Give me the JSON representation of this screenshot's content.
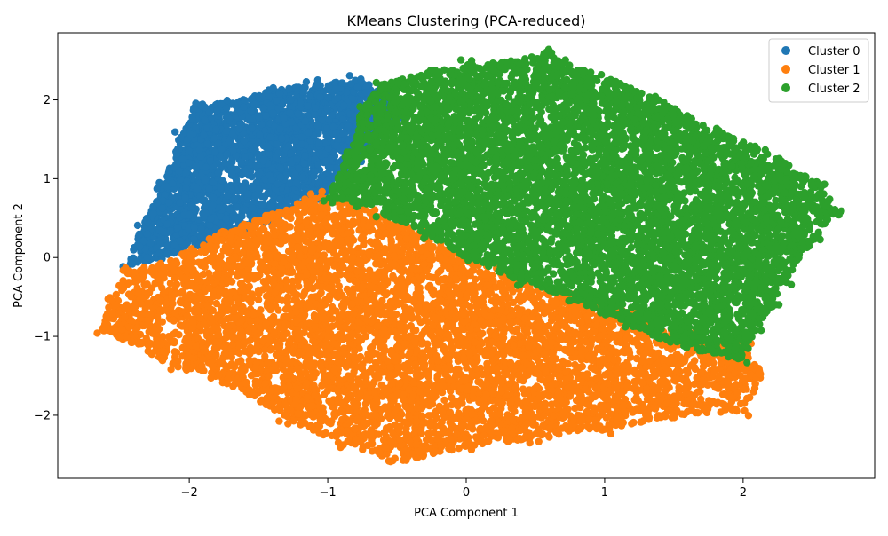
{
  "chart_data": {
    "type": "scatter",
    "title": "KMeans Clustering (PCA-reduced)",
    "xlabel": "PCA Component 1",
    "ylabel": "PCA Component 2",
    "xlim": [
      -2.95,
      2.95
    ],
    "ylim": [
      -2.8,
      2.85
    ],
    "x_ticks": [
      -2,
      -1,
      0,
      1,
      2
    ],
    "y_ticks": [
      -2,
      -1,
      0,
      1,
      2
    ],
    "x_tick_labels": [
      "−2",
      "−1",
      "0",
      "1",
      "2"
    ],
    "y_tick_labels": [
      "−2",
      "−1",
      "0",
      "1",
      "2"
    ],
    "grid": false,
    "legend_position": "top-right",
    "series": [
      {
        "name": "Cluster 0",
        "color": "#1f77b4",
        "x_range": [
          -2.5,
          -0.25
        ],
        "y_range": [
          -0.2,
          2.25
        ],
        "hull": [
          [
            -2.45,
            -0.1
          ],
          [
            -2.35,
            0.35
          ],
          [
            -2.2,
            0.9
          ],
          [
            -2.05,
            1.55
          ],
          [
            -1.95,
            1.95
          ],
          [
            -1.7,
            1.95
          ],
          [
            -1.45,
            2.1
          ],
          [
            -1.1,
            2.2
          ],
          [
            -0.8,
            2.25
          ],
          [
            -0.55,
            2.15
          ],
          [
            -0.45,
            1.8
          ],
          [
            -0.8,
            1.2
          ],
          [
            -1.0,
            0.85
          ],
          [
            -1.1,
            0.75
          ],
          [
            -1.35,
            0.5
          ],
          [
            -1.6,
            0.35
          ],
          [
            -1.9,
            0.15
          ],
          [
            -2.2,
            0.0
          ]
        ]
      },
      {
        "name": "Cluster 1",
        "color": "#ff7f0e",
        "x_range": [
          -2.65,
          2.15
        ],
        "y_range": [
          -2.6,
          0.85
        ],
        "hull": [
          [
            -2.65,
            -0.9
          ],
          [
            -2.55,
            -0.5
          ],
          [
            -2.45,
            -0.15
          ],
          [
            -2.2,
            -0.1
          ],
          [
            -1.8,
            0.3
          ],
          [
            -1.4,
            0.55
          ],
          [
            -1.1,
            0.8
          ],
          [
            -0.9,
            0.75
          ],
          [
            -0.6,
            0.55
          ],
          [
            -0.3,
            0.3
          ],
          [
            0.0,
            0.0
          ],
          [
            0.4,
            -0.25
          ],
          [
            0.8,
            -0.5
          ],
          [
            1.2,
            -0.7
          ],
          [
            1.6,
            -0.95
          ],
          [
            2.0,
            -1.1
          ],
          [
            2.15,
            -1.5
          ],
          [
            2.0,
            -1.95
          ],
          [
            1.5,
            -2.0
          ],
          [
            1.0,
            -2.2
          ],
          [
            0.5,
            -2.3
          ],
          [
            0.0,
            -2.4
          ],
          [
            -0.5,
            -2.6
          ],
          [
            -0.9,
            -2.35
          ],
          [
            -1.3,
            -2.05
          ],
          [
            -1.7,
            -1.6
          ],
          [
            -2.1,
            -1.4
          ],
          [
            -2.4,
            -1.1
          ]
        ]
      },
      {
        "name": "Cluster 2",
        "color": "#2ca02c",
        "x_range": [
          -1.0,
          2.7
        ],
        "y_range": [
          -1.3,
          2.6
        ],
        "hull": [
          [
            -1.0,
            0.75
          ],
          [
            -0.85,
            1.3
          ],
          [
            -0.75,
            1.9
          ],
          [
            -0.6,
            2.2
          ],
          [
            -0.3,
            2.35
          ],
          [
            0.0,
            2.45
          ],
          [
            0.3,
            2.5
          ],
          [
            0.6,
            2.6
          ],
          [
            0.7,
            2.45
          ],
          [
            1.0,
            2.3
          ],
          [
            1.4,
            2.0
          ],
          [
            1.8,
            1.6
          ],
          [
            2.1,
            1.4
          ],
          [
            2.3,
            1.2
          ],
          [
            2.55,
            0.95
          ],
          [
            2.68,
            0.6
          ],
          [
            2.5,
            0.2
          ],
          [
            2.3,
            -0.3
          ],
          [
            2.2,
            -0.6
          ],
          [
            2.1,
            -0.9
          ],
          [
            2.0,
            -1.3
          ],
          [
            1.6,
            -1.15
          ],
          [
            1.2,
            -0.9
          ],
          [
            0.8,
            -0.55
          ],
          [
            0.4,
            -0.3
          ],
          [
            0.0,
            0.0
          ],
          [
            -0.3,
            0.3
          ],
          [
            -0.6,
            0.55
          ],
          [
            -0.8,
            0.7
          ]
        ]
      }
    ]
  }
}
